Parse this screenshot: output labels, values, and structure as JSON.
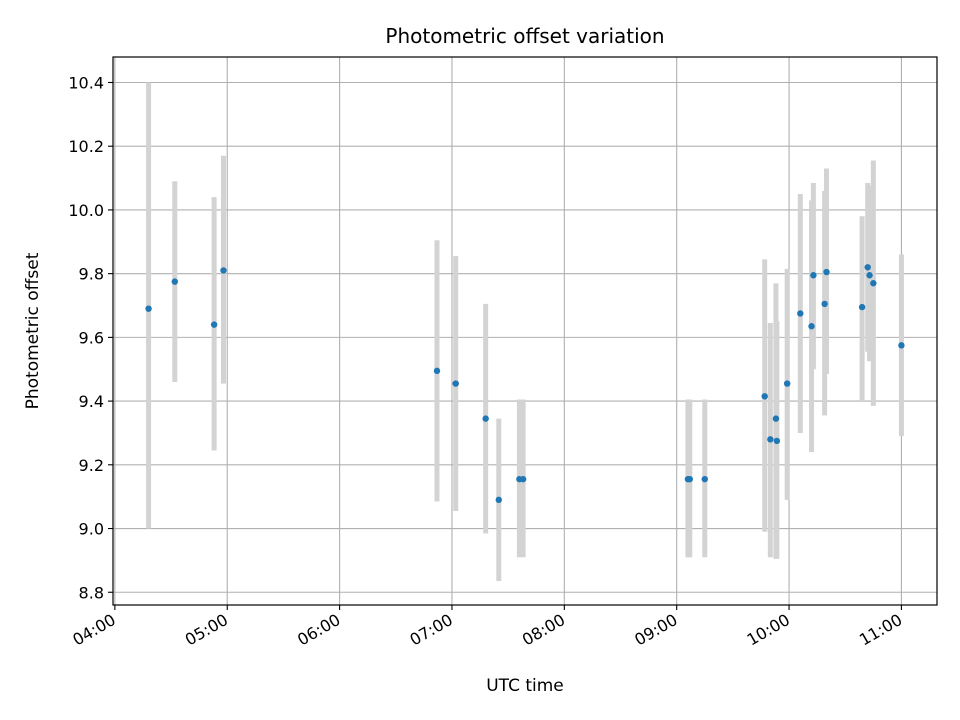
{
  "chart_data": {
    "type": "scatter",
    "title": "Photometric offset variation",
    "xlabel": "UTC time",
    "ylabel": "Photometric offset",
    "x_ticks": [
      "04:00",
      "05:00",
      "06:00",
      "07:00",
      "08:00",
      "09:00",
      "10:00",
      "11:00"
    ],
    "y_ticks": [
      "8.8",
      "9.0",
      "9.2",
      "9.4",
      "9.6",
      "9.8",
      "10.0",
      "10.2",
      "10.4"
    ],
    "xlim": [
      "03:59",
      "11:19"
    ],
    "ylim": [
      8.76,
      10.48
    ],
    "grid": true,
    "colors": {
      "points": "#1f77b4",
      "errorbars": "#d3d3d3",
      "grid": "#b0b0b0"
    },
    "points": [
      {
        "time": "04:18",
        "value": 9.69,
        "low": 9.0,
        "high": 10.4
      },
      {
        "time": "04:32",
        "value": 9.775,
        "low": 9.46,
        "high": 10.09
      },
      {
        "time": "04:53",
        "value": 9.64,
        "low": 9.245,
        "high": 10.04
      },
      {
        "time": "04:58",
        "value": 9.81,
        "low": 9.455,
        "high": 10.17
      },
      {
        "time": "06:52",
        "value": 9.495,
        "low": 9.085,
        "high": 9.905
      },
      {
        "time": "07:02",
        "value": 9.455,
        "low": 9.055,
        "high": 9.855
      },
      {
        "time": "07:18",
        "value": 9.345,
        "low": 8.985,
        "high": 9.705
      },
      {
        "time": "07:25",
        "value": 9.09,
        "low": 8.835,
        "high": 9.345
      },
      {
        "time": "07:36",
        "value": 9.155,
        "low": 8.91,
        "high": 9.405
      },
      {
        "time": "07:38",
        "value": 9.155,
        "low": 8.91,
        "high": 9.405
      },
      {
        "time": "09:06",
        "value": 9.155,
        "low": 8.91,
        "high": 9.405
      },
      {
        "time": "09:07",
        "value": 9.155,
        "low": 8.91,
        "high": 9.405
      },
      {
        "time": "09:15",
        "value": 9.155,
        "low": 8.91,
        "high": 9.405
      },
      {
        "time": "09:47",
        "value": 9.415,
        "low": 8.99,
        "high": 9.845
      },
      {
        "time": "09:50",
        "value": 9.28,
        "low": 8.91,
        "high": 9.645
      },
      {
        "time": "09:53",
        "value": 9.345,
        "low": 8.905,
        "high": 9.77
      },
      {
        "time": "09:53.5",
        "value": 9.275,
        "low": 8.905,
        "high": 9.65
      },
      {
        "time": "09:59",
        "value": 9.455,
        "low": 9.09,
        "high": 9.815
      },
      {
        "time": "10:06",
        "value": 9.675,
        "low": 9.3,
        "high": 10.05
      },
      {
        "time": "10:12",
        "value": 9.635,
        "low": 9.24,
        "high": 10.03
      },
      {
        "time": "10:13",
        "value": 9.795,
        "low": 9.5,
        "high": 10.085
      },
      {
        "time": "10:19",
        "value": 9.705,
        "low": 9.355,
        "high": 10.06
      },
      {
        "time": "10:20",
        "value": 9.805,
        "low": 9.485,
        "high": 10.13
      },
      {
        "time": "10:39",
        "value": 9.695,
        "low": 9.4,
        "high": 9.98
      },
      {
        "time": "10:42",
        "value": 9.82,
        "low": 9.555,
        "high": 10.085
      },
      {
        "time": "10:43",
        "value": 9.795,
        "low": 9.525,
        "high": 10.075
      },
      {
        "time": "10:45",
        "value": 9.77,
        "low": 9.385,
        "high": 10.155
      },
      {
        "time": "11:00",
        "value": 9.575,
        "low": 9.29,
        "high": 9.86
      }
    ]
  }
}
